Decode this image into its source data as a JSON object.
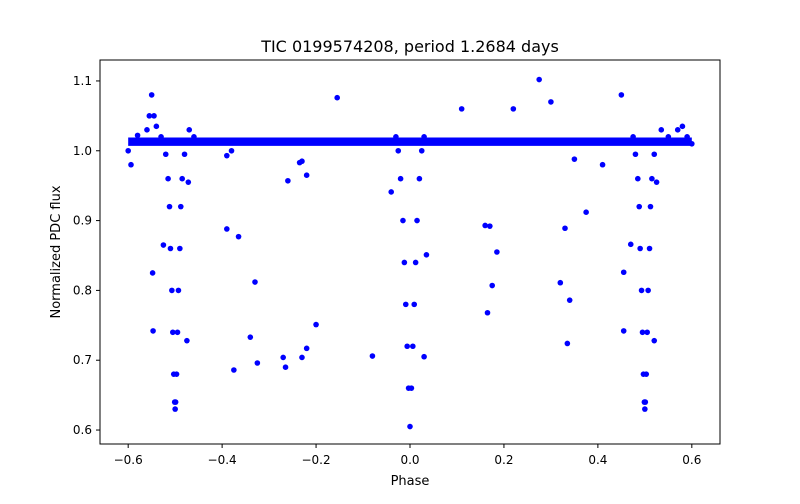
{
  "chart_data": {
    "type": "scatter",
    "title": "TIC 0199574208, period 1.2684 days",
    "xlabel": "Phase",
    "ylabel": "Normalized PDC flux",
    "xlim": [
      -0.66,
      0.66
    ],
    "ylim": [
      0.58,
      1.13
    ],
    "xticks": [
      -0.6,
      -0.4,
      -0.2,
      0.0,
      0.2,
      0.4,
      0.6
    ],
    "xtick_labels": [
      "−0.6",
      "−0.4",
      "−0.2",
      "0.0",
      "0.2",
      "0.4",
      "0.6"
    ],
    "yticks": [
      0.6,
      0.7,
      0.8,
      0.9,
      1.0,
      1.1
    ],
    "ytick_labels": [
      "0.6",
      "0.7",
      "0.8",
      "0.9",
      "1.0",
      "1.1"
    ],
    "grid": false,
    "legend": "none",
    "marker_color": "#0000ff",
    "series": [
      {
        "points": [
          [
            -0.6,
            1.0
          ],
          [
            -0.594,
            0.98
          ],
          [
            -0.58,
            1.022
          ],
          [
            -0.56,
            1.03
          ],
          [
            -0.555,
            1.05
          ],
          [
            -0.55,
            1.08
          ],
          [
            -0.545,
            1.05
          ],
          [
            -0.54,
            1.035
          ],
          [
            -0.53,
            1.02
          ],
          [
            -0.525,
            1.012
          ],
          [
            -0.52,
            0.995
          ],
          [
            -0.515,
            0.96
          ],
          [
            -0.512,
            0.92
          ],
          [
            -0.51,
            0.86
          ],
          [
            -0.507,
            0.8
          ],
          [
            -0.505,
            0.74
          ],
          [
            -0.503,
            0.68
          ],
          [
            -0.501,
            0.64
          ],
          [
            -0.5,
            0.63
          ],
          [
            -0.499,
            0.64
          ],
          [
            -0.497,
            0.68
          ],
          [
            -0.495,
            0.74
          ],
          [
            -0.493,
            0.8
          ],
          [
            -0.49,
            0.86
          ],
          [
            -0.488,
            0.92
          ],
          [
            -0.485,
            0.96
          ],
          [
            -0.48,
            0.995
          ],
          [
            -0.475,
            1.012
          ],
          [
            -0.47,
            1.03
          ],
          [
            -0.46,
            1.02
          ],
          [
            -0.525,
            0.865
          ],
          [
            -0.548,
            0.825
          ],
          [
            -0.547,
            0.742
          ],
          [
            -0.472,
            0.955
          ],
          [
            -0.475,
            0.728
          ],
          [
            -0.39,
            0.993
          ],
          [
            -0.38,
            1.0
          ],
          [
            -0.39,
            0.888
          ],
          [
            -0.365,
            0.877
          ],
          [
            -0.33,
            0.812
          ],
          [
            -0.34,
            0.733
          ],
          [
            -0.375,
            0.686
          ],
          [
            -0.325,
            0.696
          ],
          [
            -0.27,
            0.704
          ],
          [
            -0.265,
            0.69
          ],
          [
            -0.26,
            0.957
          ],
          [
            -0.235,
            0.983
          ],
          [
            -0.23,
            0.985
          ],
          [
            -0.22,
            0.965
          ],
          [
            -0.22,
            0.717
          ],
          [
            -0.2,
            0.751
          ],
          [
            -0.23,
            0.704
          ],
          [
            -0.155,
            1.076
          ],
          [
            -0.08,
            0.706
          ],
          [
            -0.04,
            0.941
          ],
          [
            -0.03,
            1.02
          ],
          [
            -0.025,
            1.0
          ],
          [
            -0.02,
            0.96
          ],
          [
            -0.015,
            0.9
          ],
          [
            -0.012,
            0.84
          ],
          [
            -0.009,
            0.78
          ],
          [
            -0.006,
            0.72
          ],
          [
            -0.003,
            0.66
          ],
          [
            0.0,
            0.605
          ],
          [
            0.003,
            0.66
          ],
          [
            0.006,
            0.72
          ],
          [
            0.009,
            0.78
          ],
          [
            0.012,
            0.84
          ],
          [
            0.015,
            0.9
          ],
          [
            0.02,
            0.96
          ],
          [
            0.025,
            1.0
          ],
          [
            0.03,
            1.02
          ],
          [
            0.035,
            0.851
          ],
          [
            0.03,
            0.705
          ],
          [
            0.11,
            1.06
          ],
          [
            0.16,
            0.893
          ],
          [
            0.17,
            0.892
          ],
          [
            0.165,
            0.768
          ],
          [
            0.175,
            0.807
          ],
          [
            0.185,
            0.855
          ],
          [
            0.22,
            1.06
          ],
          [
            0.275,
            1.102
          ],
          [
            0.3,
            1.07
          ],
          [
            0.33,
            0.889
          ],
          [
            0.32,
            0.811
          ],
          [
            0.335,
            0.724
          ],
          [
            0.34,
            0.786
          ],
          [
            0.35,
            0.988
          ],
          [
            0.375,
            0.912
          ],
          [
            0.41,
            0.98
          ],
          [
            0.45,
            1.08
          ],
          [
            0.455,
            0.826
          ],
          [
            0.455,
            0.742
          ],
          [
            0.47,
            0.866
          ],
          [
            0.475,
            1.02
          ],
          [
            0.48,
            0.995
          ],
          [
            0.485,
            0.96
          ],
          [
            0.488,
            0.92
          ],
          [
            0.49,
            0.86
          ],
          [
            0.493,
            0.8
          ],
          [
            0.495,
            0.74
          ],
          [
            0.497,
            0.68
          ],
          [
            0.499,
            0.64
          ],
          [
            0.5,
            0.63
          ],
          [
            0.501,
            0.64
          ],
          [
            0.503,
            0.68
          ],
          [
            0.505,
            0.74
          ],
          [
            0.507,
            0.8
          ],
          [
            0.51,
            0.86
          ],
          [
            0.512,
            0.92
          ],
          [
            0.515,
            0.96
          ],
          [
            0.52,
            0.995
          ],
          [
            0.525,
            1.012
          ],
          [
            0.535,
            1.03
          ],
          [
            0.52,
            0.728
          ],
          [
            0.525,
            0.955
          ],
          [
            0.55,
            1.02
          ],
          [
            0.57,
            1.03
          ],
          [
            0.58,
            1.035
          ],
          [
            0.59,
            1.02
          ],
          [
            0.6,
            1.01
          ]
        ]
      }
    ],
    "baseline_flux": 1.013
  }
}
